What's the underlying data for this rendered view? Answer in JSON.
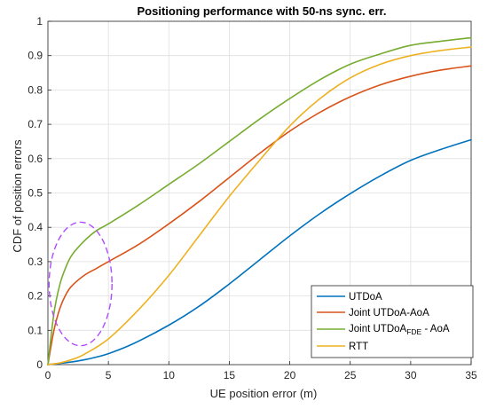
{
  "chart_data": {
    "type": "line",
    "title": "Positioning performance with 50-ns sync. err.",
    "xlabel": "UE position error (m)",
    "ylabel": "CDF of position errors",
    "xlim": [
      0,
      35
    ],
    "ylim": [
      0,
      1
    ],
    "xticks": [
      0,
      5,
      10,
      15,
      20,
      25,
      30,
      35
    ],
    "yticks": [
      0,
      0.1,
      0.2,
      0.3,
      0.4,
      0.5,
      0.6,
      0.7,
      0.8,
      0.9,
      1
    ],
    "grid": true,
    "legend_position": "bottom-right",
    "legend_entries": [
      "UTDoA",
      "Joint UTDoA-AoA",
      "Joint UTDoA",
      "FDE",
      " - AoA",
      "RTT"
    ],
    "series": [
      {
        "name": "UTDoA",
        "color": "#0072BD",
        "x": [
          0,
          2,
          3,
          4,
          5,
          7,
          10,
          12.5,
          15,
          17.5,
          20,
          22.5,
          25,
          27.5,
          30,
          32.5,
          35
        ],
        "y": [
          0,
          0.008,
          0.014,
          0.022,
          0.032,
          0.06,
          0.115,
          0.17,
          0.235,
          0.305,
          0.375,
          0.44,
          0.498,
          0.55,
          0.595,
          0.627,
          0.655
        ]
      },
      {
        "name": "Joint UTDoA-AoA",
        "color": "#D95319",
        "x": [
          0,
          0.5,
          1,
          1.5,
          2,
          3,
          4,
          5,
          7.5,
          10,
          12.5,
          15,
          17.5,
          20,
          22.5,
          25,
          27.5,
          30,
          32.5,
          35
        ],
        "y": [
          0,
          0.1,
          0.165,
          0.205,
          0.23,
          0.26,
          0.28,
          0.3,
          0.35,
          0.41,
          0.475,
          0.545,
          0.615,
          0.68,
          0.735,
          0.78,
          0.815,
          0.84,
          0.858,
          0.87
        ]
      },
      {
        "name": "Joint UTDoA FDE - AoA",
        "color": "#77AC30",
        "x": [
          0,
          0.5,
          1,
          1.5,
          2,
          3,
          4,
          5,
          7.5,
          10,
          12.5,
          15,
          17.5,
          20,
          22.5,
          25,
          27.5,
          30,
          32.5,
          35
        ],
        "y": [
          0,
          0.15,
          0.235,
          0.285,
          0.32,
          0.36,
          0.39,
          0.41,
          0.465,
          0.525,
          0.585,
          0.65,
          0.715,
          0.775,
          0.83,
          0.875,
          0.905,
          0.93,
          0.942,
          0.952
        ]
      },
      {
        "name": "RTT",
        "color": "#EDB120",
        "x": [
          0,
          1,
          2,
          3,
          5,
          7.5,
          10,
          12.5,
          15,
          17.5,
          20,
          22.5,
          25,
          27.5,
          30,
          32.5,
          35
        ],
        "y": [
          0,
          0.005,
          0.015,
          0.03,
          0.075,
          0.16,
          0.26,
          0.375,
          0.49,
          0.595,
          0.695,
          0.775,
          0.835,
          0.875,
          0.9,
          0.915,
          0.925
        ]
      }
    ],
    "annotations": [
      {
        "type": "dashed-ellipse",
        "color": "#B04BFF",
        "cx": 2.7,
        "cy": 0.235,
        "rx": 2.6,
        "ry": 0.18
      }
    ]
  }
}
